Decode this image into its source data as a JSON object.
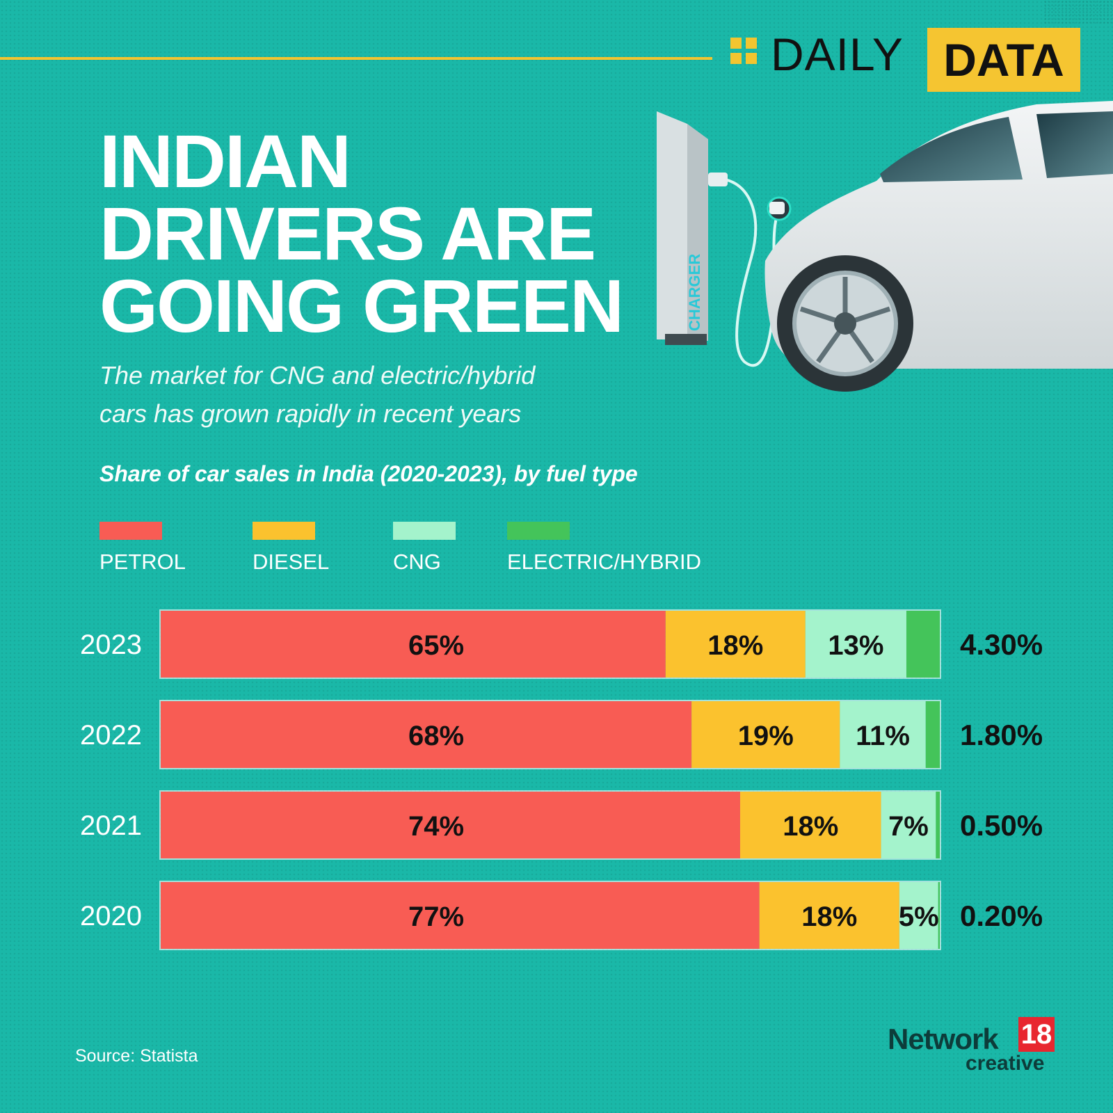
{
  "header": {
    "brand_word": "DAILY",
    "brand_highlight": "DATA"
  },
  "title_lines": [
    "INDIAN",
    "DRIVERS ARE",
    "GOING GREEN"
  ],
  "subtitle_lines": [
    "The market for CNG and electric/hybrid",
    "cars has grown rapidly in recent years"
  ],
  "illustration": {
    "charger_label": "CHARGER"
  },
  "chart_data": {
    "type": "bar",
    "orientation": "horizontal",
    "stacked": true,
    "title": "Share of car sales in India (2020-2023), by fuel type",
    "categories": [
      "2023",
      "2022",
      "2021",
      "2020"
    ],
    "series": [
      {
        "name": "PETROL",
        "color": "#f85c54",
        "values": [
          65,
          68,
          74,
          77
        ],
        "labels": [
          "65%",
          "68%",
          "74%",
          "77%"
        ]
      },
      {
        "name": "DIESEL",
        "color": "#fbc22e",
        "values": [
          18,
          19,
          18,
          18
        ],
        "labels": [
          "18%",
          "19%",
          "18%",
          "18%"
        ]
      },
      {
        "name": "CNG",
        "color": "#a4f3cc",
        "values": [
          13,
          11,
          7,
          5
        ],
        "labels": [
          "13%",
          "11%",
          "7%",
          "5%"
        ]
      },
      {
        "name": "ELECTRIC/HYBRID",
        "color": "#44c45a",
        "values": [
          4.3,
          1.8,
          0.5,
          0.2
        ],
        "labels": [
          "4.30%",
          "1.80%",
          "0.50%",
          "0.20%"
        ]
      }
    ],
    "legend_position": "top-left",
    "grid": false
  },
  "source": "Source: Statista",
  "footer_brand": {
    "name": "Network",
    "number": "18",
    "sub": "creative"
  }
}
